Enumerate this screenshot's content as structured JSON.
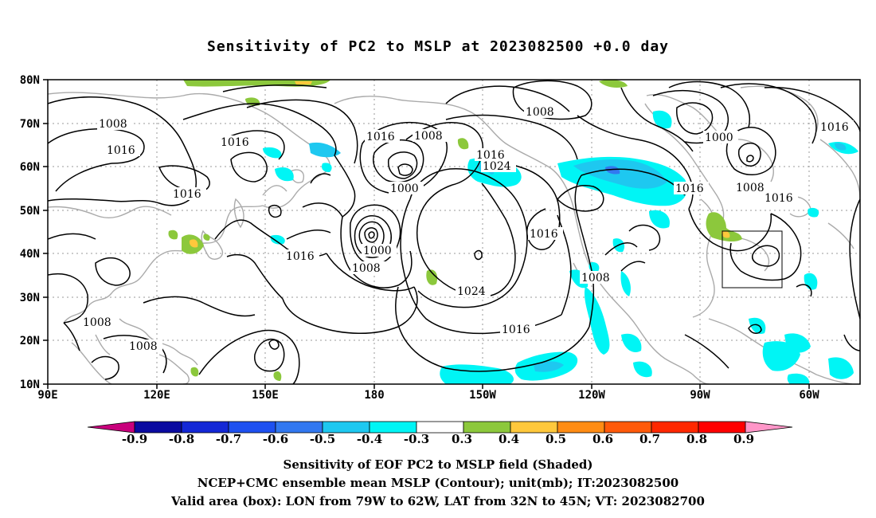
{
  "title": "Sensitivity of PC2 to MSLP at 2023082500 +0.0 day",
  "map": {
    "lat_labels": [
      "80N",
      "70N",
      "60N",
      "50N",
      "40N",
      "30N",
      "20N",
      "10N"
    ],
    "lon_labels": [
      "90E",
      "120E",
      "150E",
      "180",
      "150W",
      "120W",
      "90W",
      "60W"
    ],
    "contour_labels": [
      "1008",
      "1016",
      "1016",
      "1016",
      "1008",
      "1008",
      "1016",
      "1008",
      "1000",
      "1008",
      "1024",
      "1016",
      "1016",
      "1000",
      "1008",
      "1016",
      "1016",
      "1008",
      "1024",
      "1016",
      "1016",
      "1000",
      "1008",
      "1016",
      "1016"
    ],
    "valid_box": {
      "lon_from": "79W",
      "lon_to": "62W",
      "lat_from": "32N",
      "lat_to": "45N"
    }
  },
  "colorbar": {
    "labels": [
      "-0.9",
      "-0.8",
      "-0.7",
      "-0.6",
      "-0.5",
      "-0.4",
      "-0.3",
      "0.3",
      "0.4",
      "0.5",
      "0.6",
      "0.7",
      "0.8",
      "0.9"
    ],
    "colors": [
      "#c8007c",
      "#0a0aa0",
      "#1428d6",
      "#1e50f0",
      "#3278f0",
      "#1ec8f0",
      "#00f5f5",
      "#ffffff",
      "#8cc83c",
      "#ffc83c",
      "#ff8c14",
      "#ff5a0a",
      "#ff2800",
      "#ff0000",
      "#ff96c8"
    ]
  },
  "captions": {
    "line1": "Sensitivity of EOF PC2 to MSLP field (Shaded)",
    "line2": "NCEP+CMC ensemble mean MSLP (Contour); unit(mb); IT:2023082500",
    "line3": "Valid area (box): LON from 79W to 62W, LAT from 32N to 45N; VT: 2023082700"
  }
}
